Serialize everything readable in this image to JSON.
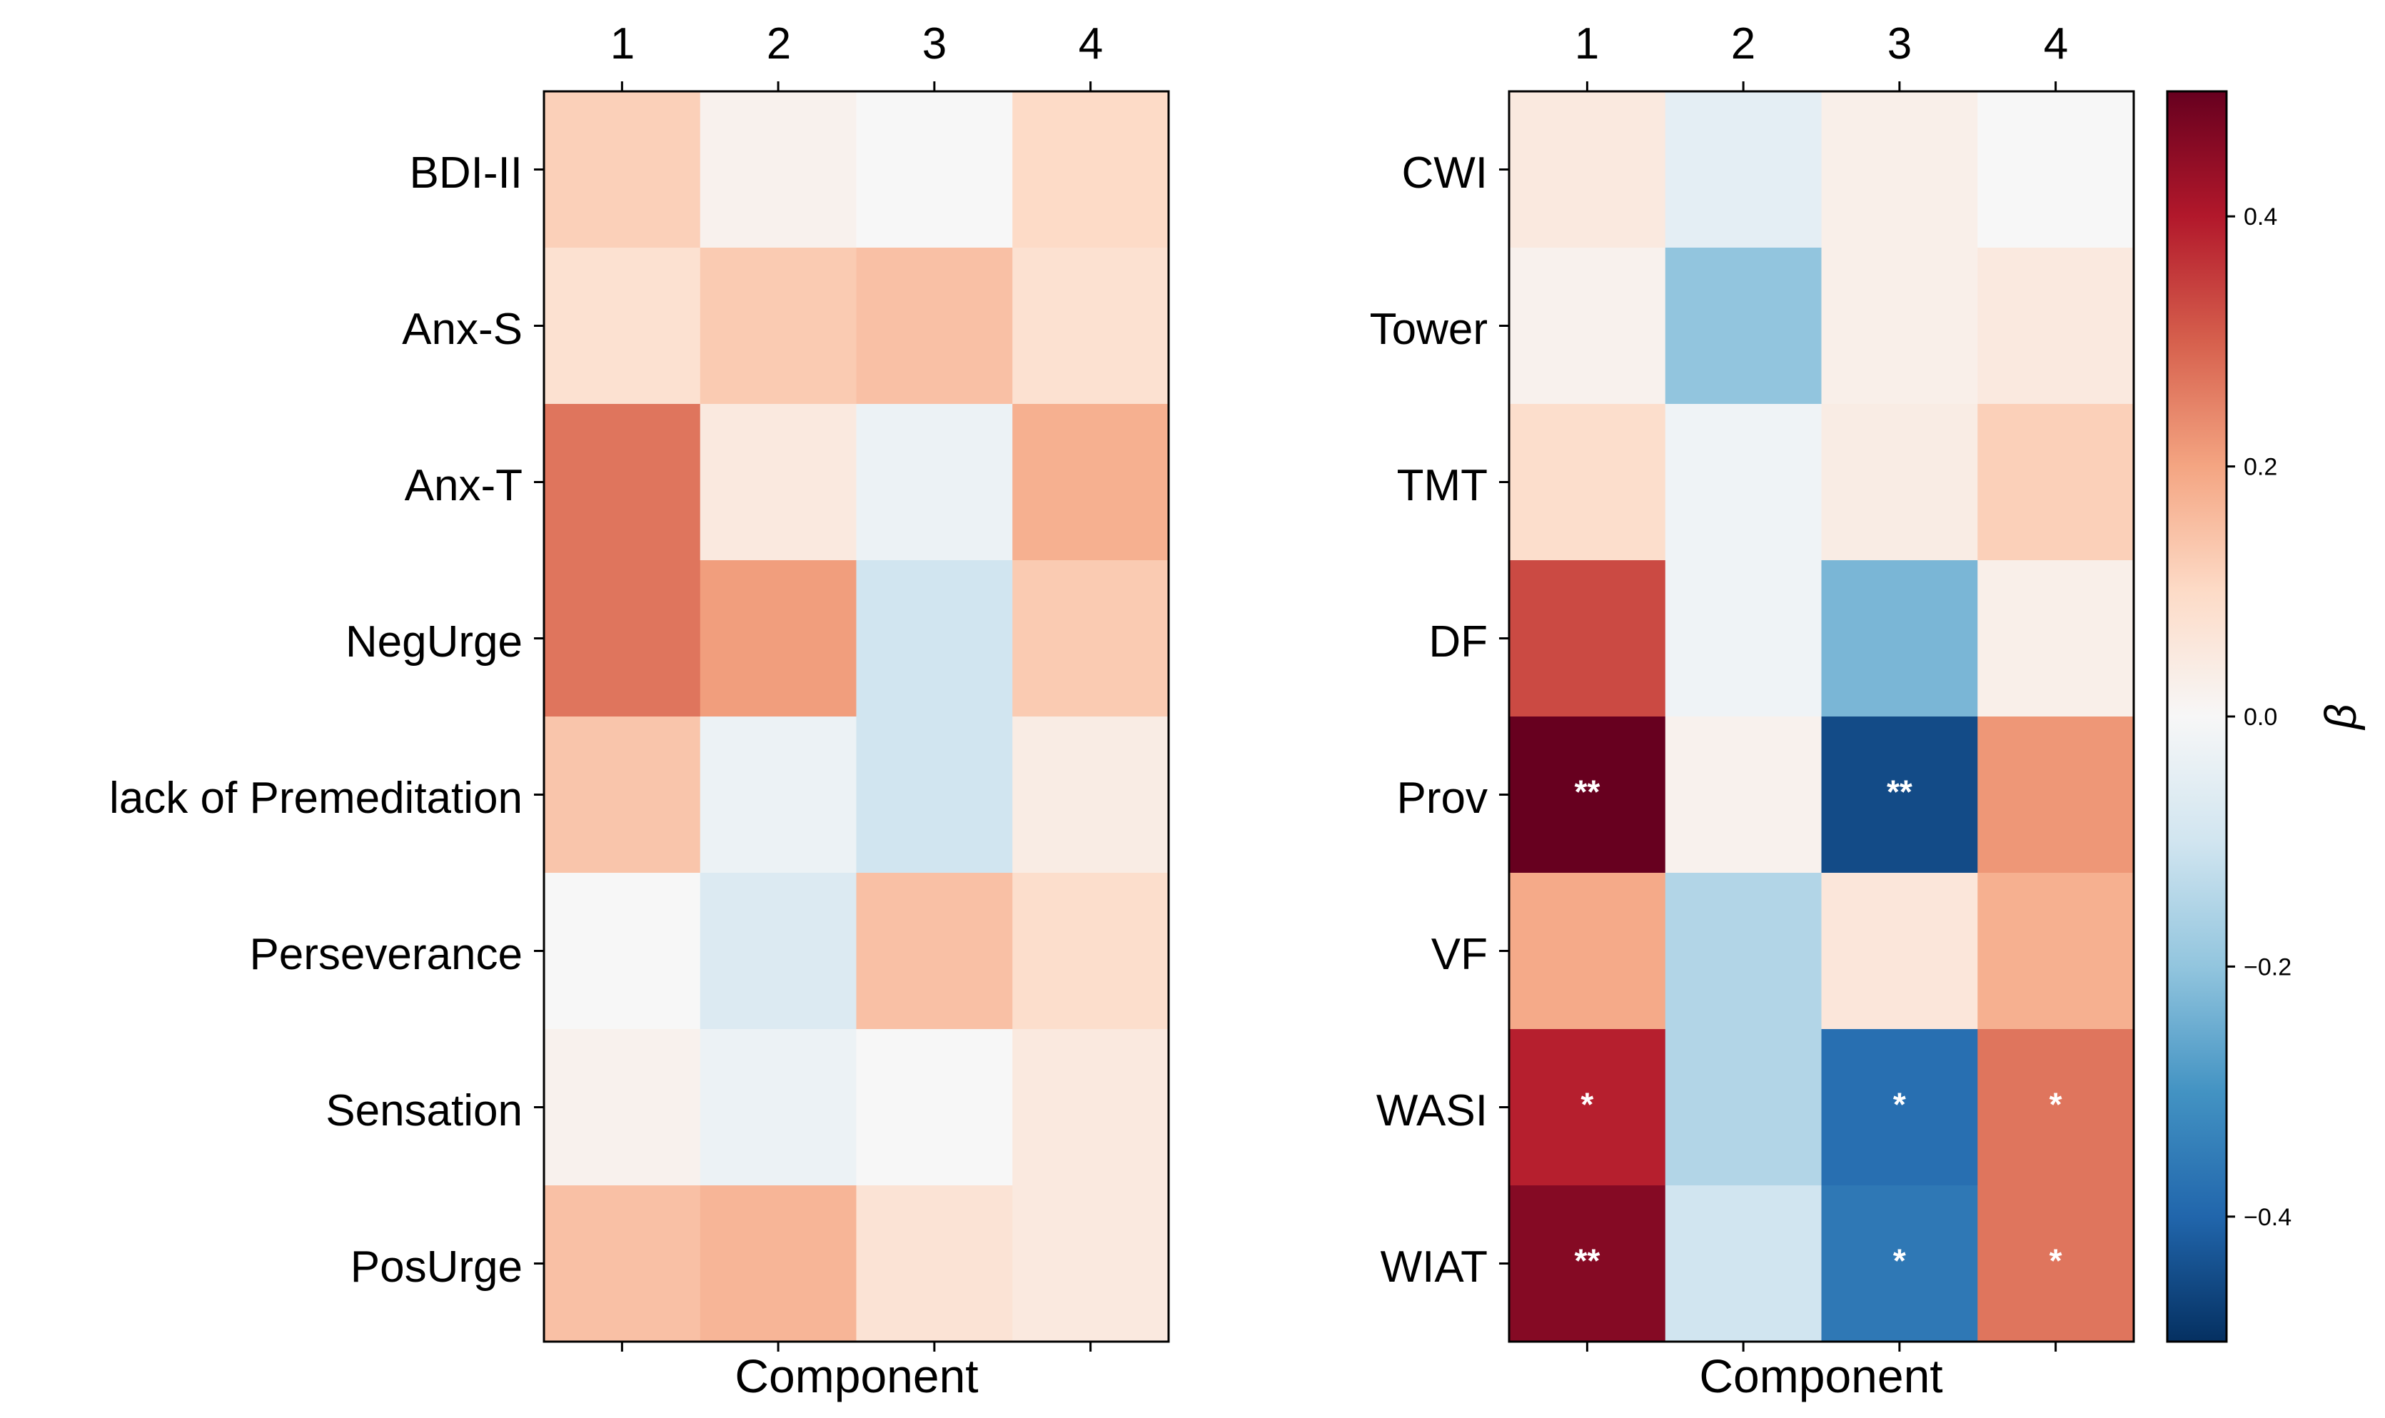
{
  "chart_data": [
    {
      "type": "heatmap",
      "xlabel": "Component",
      "columns": [
        "1",
        "2",
        "3",
        "4"
      ],
      "rows": [
        "BDI-II",
        "Anx-S",
        "Anx-T",
        "NegUrge",
        "lack of Premeditation",
        "Perseverance",
        "Sensation",
        "PosUrge"
      ],
      "values": [
        [
          0.12,
          0.02,
          0.0,
          0.1
        ],
        [
          0.08,
          0.13,
          0.15,
          0.08
        ],
        [
          0.27,
          0.05,
          -0.03,
          0.18
        ],
        [
          0.27,
          0.21,
          -0.1,
          0.13
        ],
        [
          0.14,
          -0.03,
          -0.1,
          0.04
        ],
        [
          0.0,
          -0.07,
          0.15,
          0.09
        ],
        [
          0.02,
          -0.03,
          0.0,
          0.05
        ],
        [
          0.15,
          0.17,
          0.07,
          0.05
        ]
      ],
      "annotations": [
        [
          "",
          "",
          "",
          ""
        ],
        [
          "",
          "",
          "",
          ""
        ],
        [
          "",
          "",
          "",
          ""
        ],
        [
          "",
          "",
          "",
          ""
        ],
        [
          "",
          "",
          "",
          ""
        ],
        [
          "",
          "",
          "",
          ""
        ],
        [
          "",
          "",
          "",
          ""
        ],
        [
          "",
          "",
          "",
          ""
        ]
      ]
    },
    {
      "type": "heatmap",
      "xlabel": "Component",
      "columns": [
        "1",
        "2",
        "3",
        "4"
      ],
      "rows": [
        "CWI",
        "Tower",
        "TMT",
        "DF",
        "Prov",
        "VF",
        "WASI",
        "WIAT"
      ],
      "values": [
        [
          0.05,
          -0.05,
          0.03,
          0.0
        ],
        [
          0.02,
          -0.2,
          0.03,
          0.05
        ],
        [
          0.09,
          -0.02,
          0.04,
          0.12
        ],
        [
          0.33,
          -0.02,
          -0.23,
          0.03
        ],
        [
          0.5,
          0.02,
          -0.45,
          0.22
        ],
        [
          0.19,
          -0.15,
          0.06,
          0.18
        ],
        [
          0.39,
          -0.15,
          -0.38,
          0.27
        ],
        [
          0.46,
          -0.1,
          -0.36,
          0.27
        ]
      ],
      "annotations": [
        [
          "",
          "",
          "",
          ""
        ],
        [
          "",
          "",
          "",
          ""
        ],
        [
          "",
          "",
          "",
          ""
        ],
        [
          "",
          "",
          "",
          ""
        ],
        [
          "**",
          "",
          "**",
          ""
        ],
        [
          "",
          "",
          "",
          ""
        ],
        [
          "*",
          "",
          "*",
          "*"
        ],
        [
          "**",
          "",
          "*",
          "*"
        ]
      ]
    }
  ],
  "colorbar": {
    "label": "β",
    "range": [
      -0.5,
      0.5
    ],
    "ticks": [
      "−0.4",
      "−0.2",
      "0.0",
      "0.2",
      "0.4"
    ],
    "tick_values": [
      -0.4,
      -0.2,
      0.0,
      0.2,
      0.4
    ],
    "colormap": "RdBu_r",
    "stops": [
      "#053061",
      "#2166ac",
      "#4393c3",
      "#92c5de",
      "#d1e5f0",
      "#f7f7f7",
      "#fddbc7",
      "#f4a582",
      "#d6604d",
      "#b2182b",
      "#67001f"
    ]
  }
}
